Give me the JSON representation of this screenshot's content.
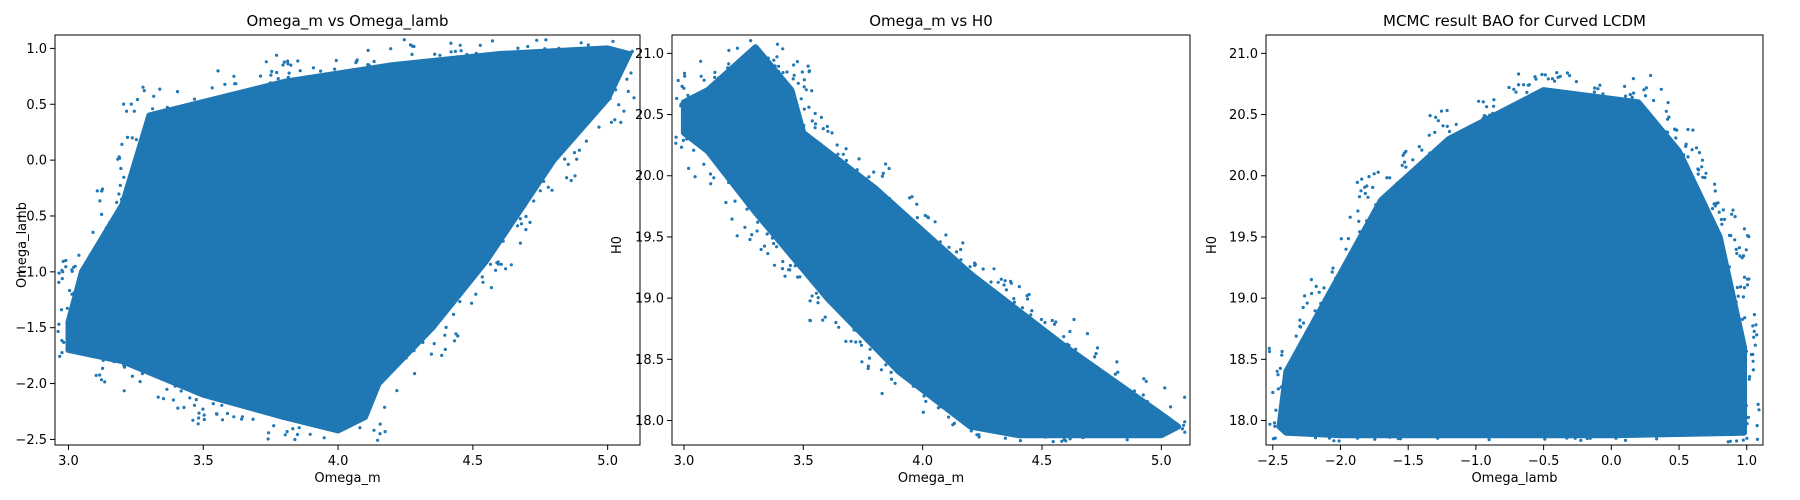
{
  "colors": {
    "marker": "#1f77b4",
    "axes": "#000000",
    "background": "#ffffff"
  },
  "chart_data": [
    {
      "type": "scatter",
      "title": "Omega_m vs Omega_lamb",
      "xlabel": "Omega_m",
      "ylabel": "Omega_lamb",
      "xlim": [
        2.95,
        5.12
      ],
      "ylim": [
        -2.55,
        1.12
      ],
      "xticks": [
        3.0,
        3.5,
        4.0,
        4.5,
        5.0
      ],
      "xtick_labels": [
        "3.0",
        "3.5",
        "4.0",
        "4.5",
        "5.0"
      ],
      "yticks": [
        -2.5,
        -2.0,
        -1.5,
        -1.0,
        -0.5,
        0.0,
        0.5,
        1.0
      ],
      "ytick_labels": [
        "−2.5",
        "−2.0",
        "−1.5",
        "−1.0",
        "−0.5",
        "0.0",
        "0.5",
        "1.0"
      ],
      "grid": false,
      "series": [
        {
          "outline": [
            [
              3.0,
              -1.45
            ],
            [
              3.05,
              -1.0
            ],
            [
              3.2,
              -0.4
            ],
            [
              3.3,
              0.4
            ],
            [
              3.55,
              0.55
            ],
            [
              3.8,
              0.7
            ],
            [
              4.2,
              0.85
            ],
            [
              4.6,
              0.95
            ],
            [
              5.0,
              1.0
            ],
            [
              5.08,
              0.95
            ],
            [
              5.0,
              0.55
            ],
            [
              4.8,
              0.0
            ],
            [
              4.55,
              -0.9
            ],
            [
              4.35,
              -1.5
            ],
            [
              4.15,
              -2.0
            ],
            [
              4.1,
              -2.3
            ],
            [
              4.0,
              -2.42
            ],
            [
              3.8,
              -2.3
            ],
            [
              3.5,
              -2.1
            ],
            [
              3.2,
              -1.8
            ],
            [
              3.0,
              -1.7
            ]
          ]
        }
      ]
    },
    {
      "type": "scatter",
      "title": "Omega_m vs H0",
      "xlabel": "Omega_m",
      "ylabel": "H0",
      "xlim": [
        2.95,
        5.12
      ],
      "ylim": [
        17.8,
        21.15
      ],
      "xticks": [
        3.0,
        3.5,
        4.0,
        4.5,
        5.0
      ],
      "xtick_labels": [
        "3.0",
        "3.5",
        "4.0",
        "4.5",
        "5.0"
      ],
      "yticks": [
        18.0,
        18.5,
        19.0,
        19.5,
        20.0,
        20.5,
        21.0
      ],
      "ytick_labels": [
        "18.0",
        "18.5",
        "19.0",
        "19.5",
        "20.0",
        "20.5",
        "21.0"
      ],
      "grid": false,
      "series": [
        {
          "outline": [
            [
              3.0,
              20.6
            ],
            [
              3.1,
              20.7
            ],
            [
              3.3,
              21.05
            ],
            [
              3.45,
              20.7
            ],
            [
              3.5,
              20.35
            ],
            [
              3.8,
              19.9
            ],
            [
              4.2,
              19.2
            ],
            [
              4.6,
              18.6
            ],
            [
              5.0,
              18.05
            ],
            [
              5.07,
              17.95
            ],
            [
              5.0,
              17.88
            ],
            [
              4.4,
              17.88
            ],
            [
              4.2,
              17.95
            ],
            [
              3.9,
              18.4
            ],
            [
              3.6,
              19.0
            ],
            [
              3.3,
              19.7
            ],
            [
              3.1,
              20.2
            ],
            [
              3.0,
              20.35
            ]
          ]
        }
      ]
    },
    {
      "type": "scatter",
      "title": "MCMC result BAO for Curved LCDM",
      "xlabel": "Omega_lamb",
      "ylabel": "H0",
      "xlim": [
        -2.55,
        1.12
      ],
      "ylim": [
        17.8,
        21.15
      ],
      "xticks": [
        -2.5,
        -2.0,
        -1.5,
        -1.0,
        -0.5,
        0.0,
        0.5,
        1.0
      ],
      "xtick_labels": [
        "−2.5",
        "−2.0",
        "−1.5",
        "−1.0",
        "−0.5",
        "0.0",
        "0.5",
        "1.0"
      ],
      "yticks": [
        18.0,
        18.5,
        19.0,
        19.5,
        20.0,
        20.5,
        21.0
      ],
      "ytick_labels": [
        "18.0",
        "18.5",
        "19.0",
        "19.5",
        "20.0",
        "20.5",
        "21.0"
      ],
      "grid": false,
      "series": [
        {
          "outline": [
            [
              -2.45,
              17.95
            ],
            [
              -2.4,
              18.4
            ],
            [
              -2.1,
              19.0
            ],
            [
              -1.7,
              19.8
            ],
            [
              -1.2,
              20.3
            ],
            [
              -0.5,
              20.7
            ],
            [
              0.2,
              20.6
            ],
            [
              0.5,
              20.2
            ],
            [
              0.8,
              19.5
            ],
            [
              0.98,
              18.6
            ],
            [
              0.98,
              17.9
            ],
            [
              0.0,
              17.88
            ],
            [
              -1.0,
              17.88
            ],
            [
              -2.0,
              17.88
            ],
            [
              -2.4,
              17.9
            ]
          ]
        }
      ]
    }
  ]
}
